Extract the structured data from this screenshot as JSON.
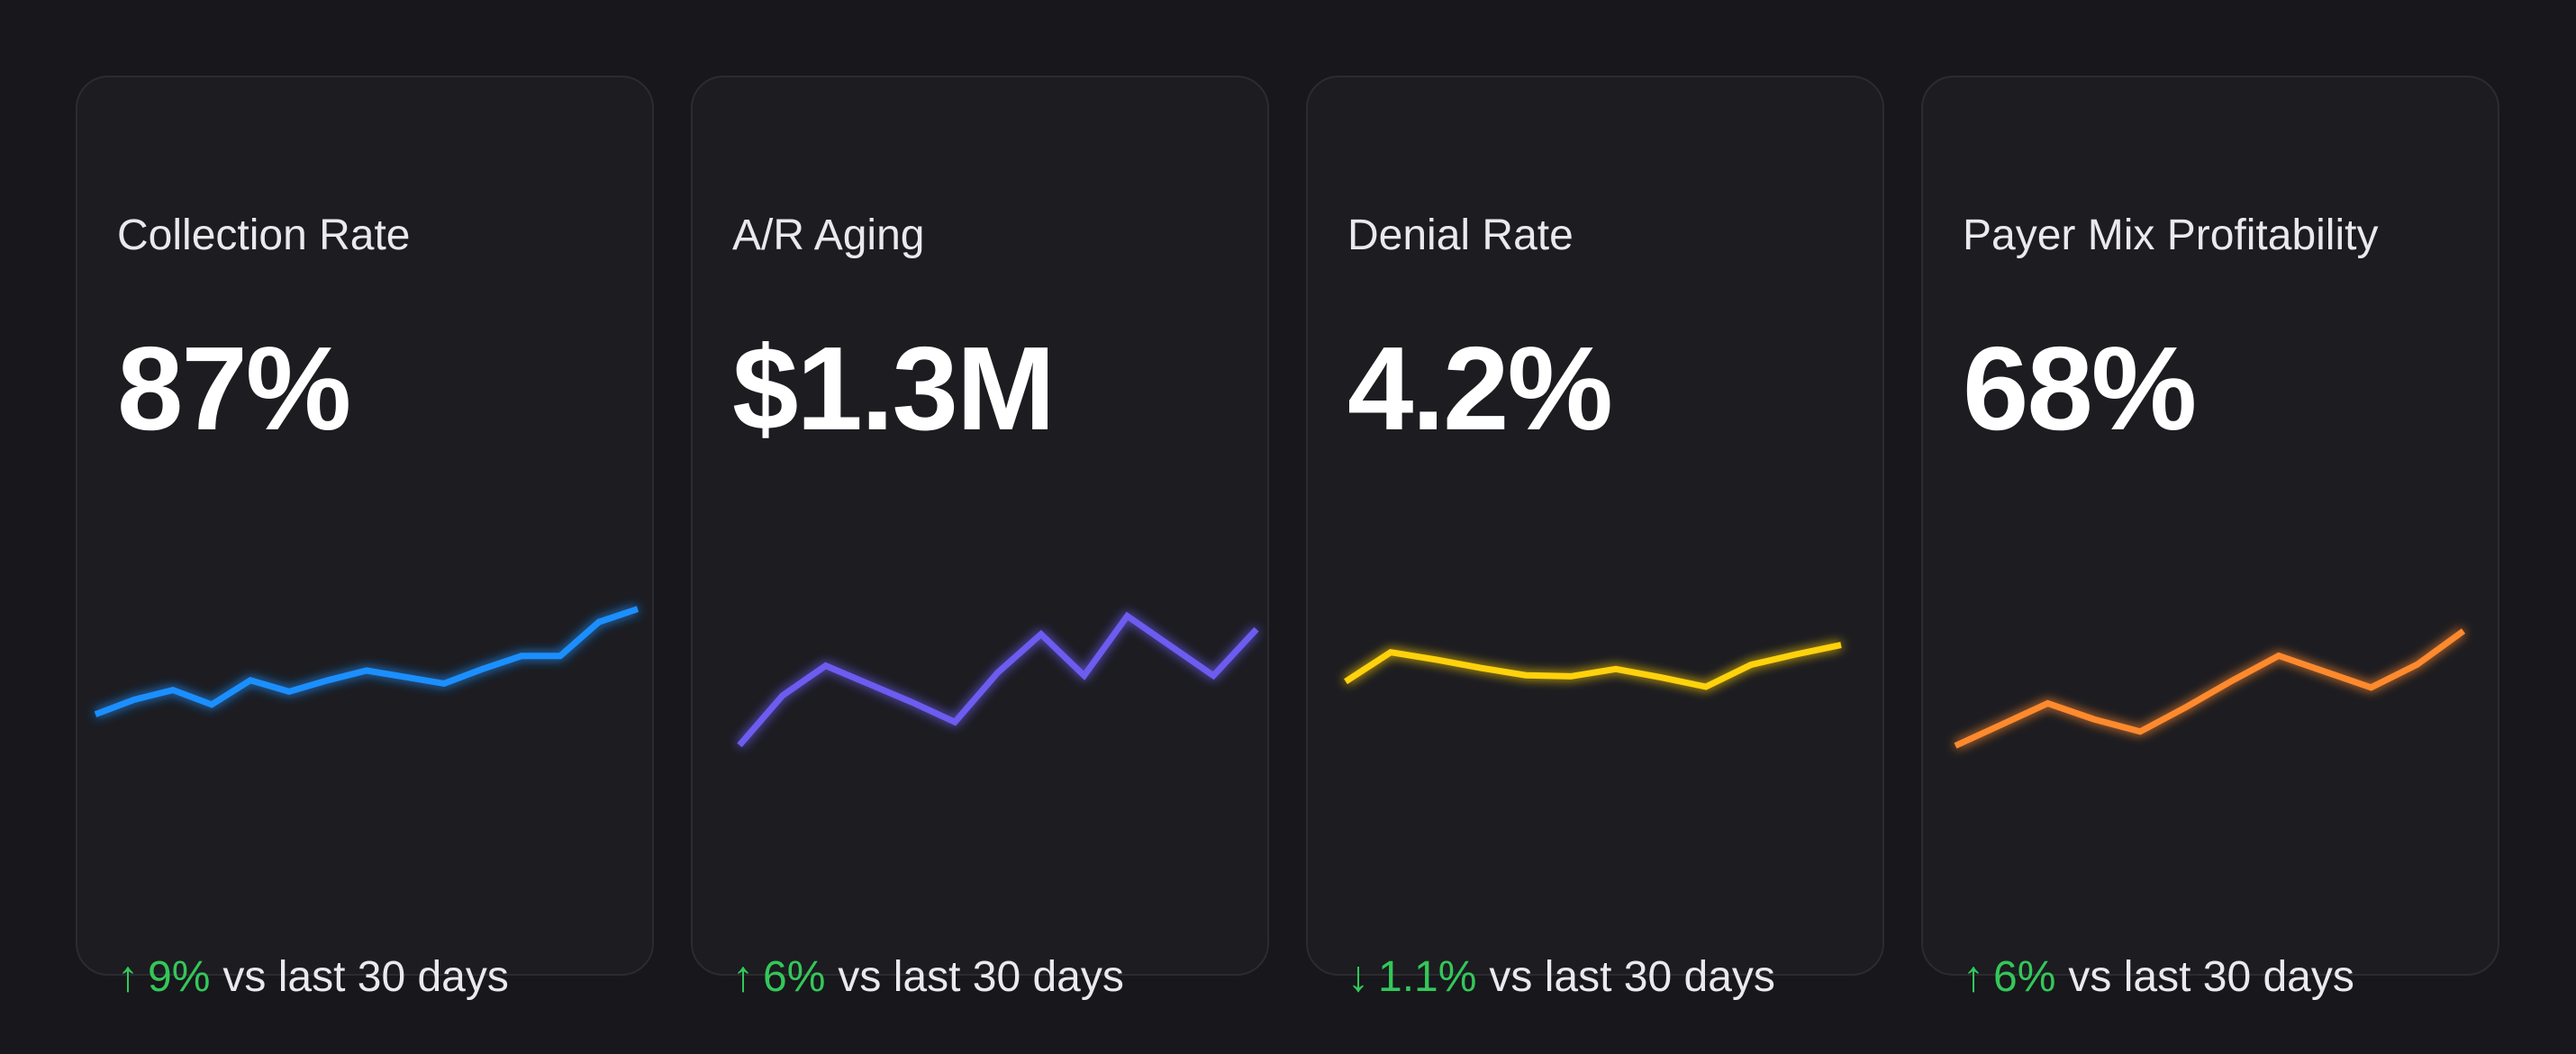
{
  "cards": [
    {
      "title": "Collection Rate",
      "value": "87%",
      "trend_direction": "up",
      "trend_arrow": "↑",
      "trend_value": "9%",
      "trend_label": "vs last 30 days",
      "color": "#1a8fff",
      "sparkline": [
        18,
        27,
        33,
        24,
        39,
        32,
        39,
        45,
        41,
        37,
        46,
        54,
        54,
        75,
        83
      ]
    },
    {
      "title": "A/R Aging",
      "value": "$1.3M",
      "trend_direction": "up",
      "trend_arrow": "↑",
      "trend_value": "6%",
      "trend_label": "vs last 30 days",
      "color": "#6c5cf0",
      "sparkline": [
        12,
        42,
        60,
        49,
        38,
        26,
        56,
        79,
        54,
        90,
        72,
        54,
        82
      ]
    },
    {
      "title": "Denial Rate",
      "value": "4.2%",
      "trend_direction": "down",
      "trend_arrow": "↓",
      "trend_value": "1.1%",
      "trend_label": "vs last 30 days",
      "color": "#ffd20a",
      "sparkline": [
        30,
        58,
        51,
        43,
        36,
        35,
        42,
        34,
        25,
        46,
        56,
        65
      ]
    },
    {
      "title": "Payer Mix Profitability",
      "value": "68%",
      "trend_direction": "up",
      "trend_arrow": "↑",
      "trend_value": "6%",
      "trend_label": "vs last 30 days",
      "color": "#ff8a2e",
      "sparkline": [
        12,
        24,
        36,
        27,
        20,
        34,
        49,
        63,
        54,
        45,
        58,
        77
      ]
    }
  ],
  "trend_color": "#34c759"
}
